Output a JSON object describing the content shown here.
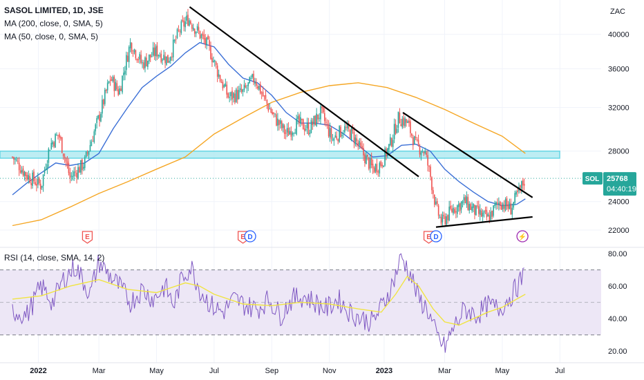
{
  "legend": {
    "title": "SASOL LIMITED, 1D, JSE",
    "ma200": "MA (200, close, 0, SMA, 5)",
    "ma50": "MA (50, close, 0, SMA, 5)",
    "rsi": "RSI (14, close, SMA, 14, 2)"
  },
  "currency": "ZAC",
  "last_price": {
    "symbol": "SOL",
    "value": "25768",
    "countdown": "04:40:19"
  },
  "colors": {
    "up": "#26a69a",
    "down": "#ef5350",
    "ma200": "#f5a623",
    "ma50": "#3b6fd6",
    "rsi": "#7e57c2",
    "rsi_ma": "#f0e442",
    "rsi_band": "#ede7f6",
    "zone_fill": "#b2ebf2",
    "zone_line": "#4dd0e1",
    "trendline": "#000000",
    "price_tag": "#26a69a"
  },
  "event_markers": [
    {
      "kind": "E",
      "color": "#ef5350",
      "month_index": 2.6
    },
    {
      "kind": "E",
      "color": "#ef5350",
      "month_index": 8.0
    },
    {
      "kind": "D",
      "color": "#2962ff",
      "month_index": 8.25
    },
    {
      "kind": "E",
      "color": "#ef5350",
      "month_index": 14.45
    },
    {
      "kind": "D",
      "color": "#2962ff",
      "month_index": 14.7
    },
    {
      "kind": "⚡",
      "color": "#9c27b0",
      "month_index": 17.7
    }
  ],
  "chart_data": [
    {
      "type": "candlestick",
      "title": "SASOL LIMITED, 1D, JSE",
      "xaxis_ticks": [
        "2022",
        "Mar",
        "May",
        "Jul",
        "Sep",
        "Nov",
        "2023",
        "Mar",
        "May",
        "Jul"
      ],
      "yaxis_ticks": [
        22000,
        24000,
        28000,
        32000,
        36000,
        40000
      ],
      "ylim": [
        21000,
        43500
      ],
      "scale": "log",
      "close_path": [
        [
          0,
          27500
        ],
        [
          0.5,
          26000
        ],
        [
          1,
          25200
        ],
        [
          1.3,
          28500
        ],
        [
          1.6,
          29500
        ],
        [
          2,
          25800
        ],
        [
          2.5,
          27000
        ],
        [
          3,
          31000
        ],
        [
          3.4,
          35000
        ],
        [
          3.7,
          33500
        ],
        [
          4.1,
          39000
        ],
        [
          4.5,
          36500
        ],
        [
          5,
          38000
        ],
        [
          5.4,
          37000
        ],
        [
          5.8,
          40500
        ],
        [
          6.1,
          42000
        ],
        [
          6.5,
          40000
        ],
        [
          6.8,
          38500
        ],
        [
          7.2,
          35000
        ],
        [
          7.5,
          33000
        ],
        [
          8,
          33500
        ],
        [
          8.4,
          35000
        ],
        [
          8.8,
          32500
        ],
        [
          9.1,
          31000
        ],
        [
          9.5,
          29500
        ],
        [
          9.9,
          30500
        ],
        [
          10.3,
          30000
        ],
        [
          10.7,
          31500
        ],
        [
          11.1,
          29000
        ],
        [
          11.5,
          30000
        ],
        [
          11.8,
          29500
        ],
        [
          12.1,
          28000
        ],
        [
          12.5,
          26500
        ],
        [
          12.8,
          27000
        ],
        [
          13.1,
          28500
        ],
        [
          13.4,
          31000
        ],
        [
          13.7,
          30500
        ],
        [
          14,
          28500
        ],
        [
          14.3,
          28000
        ],
        [
          14.5,
          26000
        ],
        [
          14.7,
          23500
        ],
        [
          14.9,
          22500
        ],
        [
          15.3,
          23500
        ],
        [
          15.7,
          24000
        ],
        [
          16.1,
          23200
        ],
        [
          16.5,
          22800
        ],
        [
          16.9,
          24000
        ],
        [
          17.3,
          23500
        ],
        [
          17.6,
          24800
        ],
        [
          17.8,
          25768
        ]
      ],
      "series": [
        {
          "name": "MA (200, close, 0, SMA, 5)",
          "points": [
            [
              0,
              22300
            ],
            [
              1,
              22700
            ],
            [
              2,
              23600
            ],
            [
              3,
              24600
            ],
            [
              4,
              25500
            ],
            [
              5,
              26500
            ],
            [
              6,
              27500
            ],
            [
              7,
              29500
            ],
            [
              8,
              31000
            ],
            [
              9,
              32500
            ],
            [
              10,
              33500
            ],
            [
              11,
              34200
            ],
            [
              12,
              34500
            ],
            [
              13,
              34000
            ],
            [
              14,
              33000
            ],
            [
              15,
              31800
            ],
            [
              16,
              30500
            ],
            [
              17,
              29300
            ],
            [
              17.8,
              27800
            ]
          ]
        },
        {
          "name": "MA (50, close, 0, SMA, 5)",
          "points": [
            [
              0,
              24500
            ],
            [
              0.5,
              25400
            ],
            [
              1,
              26200
            ],
            [
              1.5,
              27000
            ],
            [
              2,
              26800
            ],
            [
              2.5,
              27000
            ],
            [
              3,
              27800
            ],
            [
              3.5,
              30000
            ],
            [
              4,
              32000
            ],
            [
              4.5,
              34000
            ],
            [
              5,
              35200
            ],
            [
              5.5,
              36300
            ],
            [
              6,
              37800
            ],
            [
              6.5,
              39000
            ],
            [
              7,
              38500
            ],
            [
              7.5,
              36500
            ],
            [
              8,
              35000
            ],
            [
              8.5,
              34500
            ],
            [
              9,
              33200
            ],
            [
              9.5,
              31500
            ],
            [
              10,
              30500
            ],
            [
              10.5,
              30500
            ],
            [
              11,
              30300
            ],
            [
              11.5,
              29500
            ],
            [
              12,
              28500
            ],
            [
              12.5,
              27500
            ],
            [
              13,
              27600
            ],
            [
              13.5,
              28500
            ],
            [
              14,
              28600
            ],
            [
              14.5,
              28000
            ],
            [
              15,
              26500
            ],
            [
              15.5,
              25500
            ],
            [
              16,
              24700
            ],
            [
              16.5,
              24000
            ],
            [
              17,
              23700
            ],
            [
              17.5,
              23800
            ],
            [
              17.8,
              24200
            ]
          ]
        }
      ],
      "support_zone": [
        27400,
        28000
      ],
      "last_close_line": 25768,
      "trendlines": [
        {
          "from": [
            6.15,
            43500
          ],
          "to": [
            14.1,
            25900
          ]
        },
        {
          "from": [
            13.55,
            31500
          ],
          "to": [
            18.05,
            24300
          ]
        },
        {
          "from": [
            14.7,
            22200
          ],
          "to": [
            18.05,
            22900
          ]
        }
      ]
    },
    {
      "type": "line",
      "title": "RSI (14, close, SMA, 14, 2)",
      "yaxis_ticks": [
        20,
        40,
        60,
        80
      ],
      "ylim": [
        15,
        83
      ],
      "band": [
        30,
        70
      ],
      "mid": 50,
      "series": [
        {
          "name": "RSI",
          "values": [
            [
              0,
              45
            ],
            [
              0.5,
              42
            ],
            [
              1,
              60
            ],
            [
              1.4,
              50
            ],
            [
              1.8,
              65
            ],
            [
              2.2,
              72
            ],
            [
              2.7,
              55
            ],
            [
              3,
              75
            ],
            [
              3.3,
              68
            ],
            [
              3.7,
              60
            ],
            [
              4.1,
              50
            ],
            [
              4.5,
              58
            ],
            [
              4.9,
              52
            ],
            [
              5.3,
              60
            ],
            [
              5.6,
              48
            ],
            [
              5.9,
              66
            ],
            [
              6.2,
              72
            ],
            [
              6.5,
              58
            ],
            [
              6.9,
              48
            ],
            [
              7.3,
              44
            ],
            [
              7.7,
              52
            ],
            [
              8.1,
              48
            ],
            [
              8.5,
              46
            ],
            [
              8.9,
              52
            ],
            [
              9.3,
              42
            ],
            [
              9.7,
              52
            ],
            [
              10.1,
              54
            ],
            [
              10.5,
              50
            ],
            [
              10.9,
              46
            ],
            [
              11.3,
              52
            ],
            [
              11.7,
              44
            ],
            [
              12.1,
              40
            ],
            [
              12.5,
              38
            ],
            [
              12.9,
              50
            ],
            [
              13.2,
              62
            ],
            [
              13.5,
              78
            ],
            [
              13.8,
              68
            ],
            [
              14.1,
              52
            ],
            [
              14.4,
              46
            ],
            [
              14.7,
              30
            ],
            [
              15,
              22
            ],
            [
              15.3,
              34
            ],
            [
              15.7,
              46
            ],
            [
              16.1,
              42
            ],
            [
              16.5,
              48
            ],
            [
              16.9,
              46
            ],
            [
              17.3,
              54
            ],
            [
              17.6,
              62
            ],
            [
              17.8,
              68
            ]
          ]
        },
        {
          "name": "RSI MA",
          "values": [
            [
              0,
              52
            ],
            [
              1,
              54
            ],
            [
              2,
              60
            ],
            [
              3,
              64
            ],
            [
              4,
              58
            ],
            [
              5,
              56
            ],
            [
              6,
              62
            ],
            [
              6.5,
              60
            ],
            [
              7,
              55
            ],
            [
              8,
              49
            ],
            [
              9,
              48
            ],
            [
              10,
              50
            ],
            [
              11,
              49
            ],
            [
              12,
              46
            ],
            [
              12.8,
              44
            ],
            [
              13.3,
              55
            ],
            [
              13.7,
              66
            ],
            [
              14.1,
              60
            ],
            [
              14.6,
              46
            ],
            [
              15,
              38
            ],
            [
              15.5,
              36
            ],
            [
              16,
              40
            ],
            [
              16.5,
              44
            ],
            [
              17,
              47
            ],
            [
              17.5,
              52
            ],
            [
              17.8,
              55
            ]
          ]
        }
      ]
    }
  ]
}
